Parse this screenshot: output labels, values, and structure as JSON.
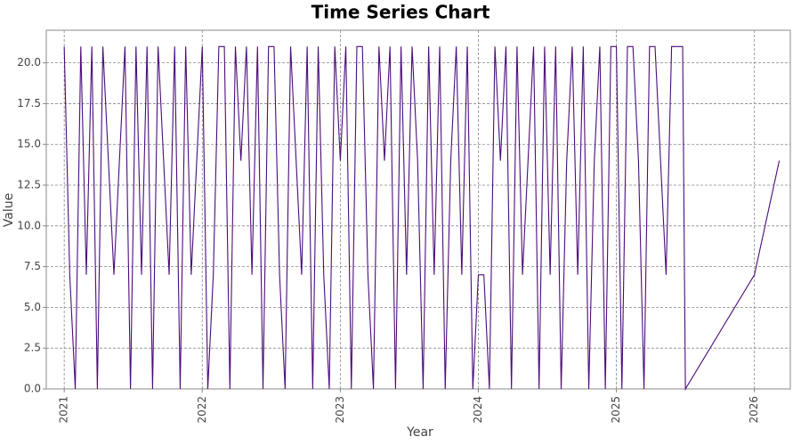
{
  "chart_data": {
    "type": "line",
    "title": "Time Series Chart",
    "x_label": "Year",
    "y_label": "Value",
    "x": [
      2021.0,
      2021.04,
      2021.08,
      2021.12,
      2021.16,
      2021.2,
      2021.24,
      2021.28,
      2021.32,
      2021.36,
      2021.4,
      2021.44,
      2021.48,
      2021.52,
      2021.56,
      2021.6,
      2021.64,
      2021.68,
      2021.72,
      2021.76,
      2021.8,
      2021.84,
      2021.88,
      2021.92,
      2021.96,
      2022.0,
      2022.04,
      2022.08,
      2022.12,
      2022.16,
      2022.2,
      2022.24,
      2022.28,
      2022.32,
      2022.36,
      2022.4,
      2022.44,
      2022.48,
      2022.52,
      2022.56,
      2022.6,
      2022.64,
      2022.68,
      2022.72,
      2022.76,
      2022.8,
      2022.84,
      2022.88,
      2022.92,
      2022.96,
      2023.0,
      2023.04,
      2023.08,
      2023.12,
      2023.16,
      2023.2,
      2023.24,
      2023.28,
      2023.32,
      2023.36,
      2023.4,
      2023.44,
      2023.48,
      2023.52,
      2023.56,
      2023.6,
      2023.64,
      2023.68,
      2023.72,
      2023.76,
      2023.8,
      2023.84,
      2023.88,
      2023.92,
      2023.96,
      2024.0,
      2024.04,
      2024.08,
      2024.12,
      2024.16,
      2024.2,
      2024.24,
      2024.28,
      2024.32,
      2024.36,
      2024.4,
      2024.44,
      2024.48,
      2024.52,
      2024.56,
      2024.6,
      2024.64,
      2024.68,
      2024.72,
      2024.76,
      2024.8,
      2024.84,
      2024.88,
      2024.92,
      2024.96,
      2025.0,
      2025.04,
      2025.08,
      2025.12,
      2025.16,
      2025.2,
      2025.24,
      2025.28,
      2025.32,
      2025.36,
      2025.4,
      2025.44,
      2025.48,
      2025.5,
      2026.0,
      2026.18
    ],
    "series": [
      {
        "name": "Value",
        "color": "#4b0c7a",
        "values": [
          21,
          7,
          0,
          21,
          7,
          21,
          0,
          21,
          14,
          7,
          14,
          21,
          0,
          21,
          7,
          21,
          0,
          21,
          14,
          7,
          21,
          0,
          21,
          7,
          14,
          21,
          0,
          7,
          21,
          21,
          0,
          21,
          14,
          21,
          7,
          21,
          0,
          21,
          21,
          7,
          0,
          21,
          14,
          7,
          21,
          0,
          21,
          7,
          0,
          21,
          14,
          21,
          0,
          21,
          21,
          7,
          0,
          21,
          14,
          21,
          0,
          21,
          7,
          21,
          14,
          0,
          21,
          7,
          21,
          0,
          14,
          21,
          7,
          21,
          0,
          7,
          7,
          0,
          21,
          14,
          21,
          0,
          21,
          7,
          14,
          21,
          0,
          21,
          7,
          21,
          0,
          14,
          21,
          7,
          21,
          0,
          14,
          21,
          0,
          21,
          21,
          0,
          21,
          21,
          14,
          0,
          21,
          21,
          14,
          7,
          21,
          21,
          21,
          0,
          7,
          14
        ]
      }
    ],
    "xlim": [
      2020.87,
      2026.26
    ],
    "ylim": [
      0,
      22.0
    ],
    "xticks": [
      2021,
      2022,
      2023,
      2024,
      2025,
      2026
    ],
    "yticks": [
      {
        "value": 0,
        "label": "0.0"
      },
      2.5,
      {
        "value": 5,
        "label": "5.0"
      },
      7.5,
      {
        "value": 10,
        "label": "10.0"
      },
      12.5,
      {
        "value": 15,
        "label": "15.0"
      },
      17.5,
      {
        "value": 20,
        "label": "20.0"
      }
    ],
    "grid": true
  }
}
